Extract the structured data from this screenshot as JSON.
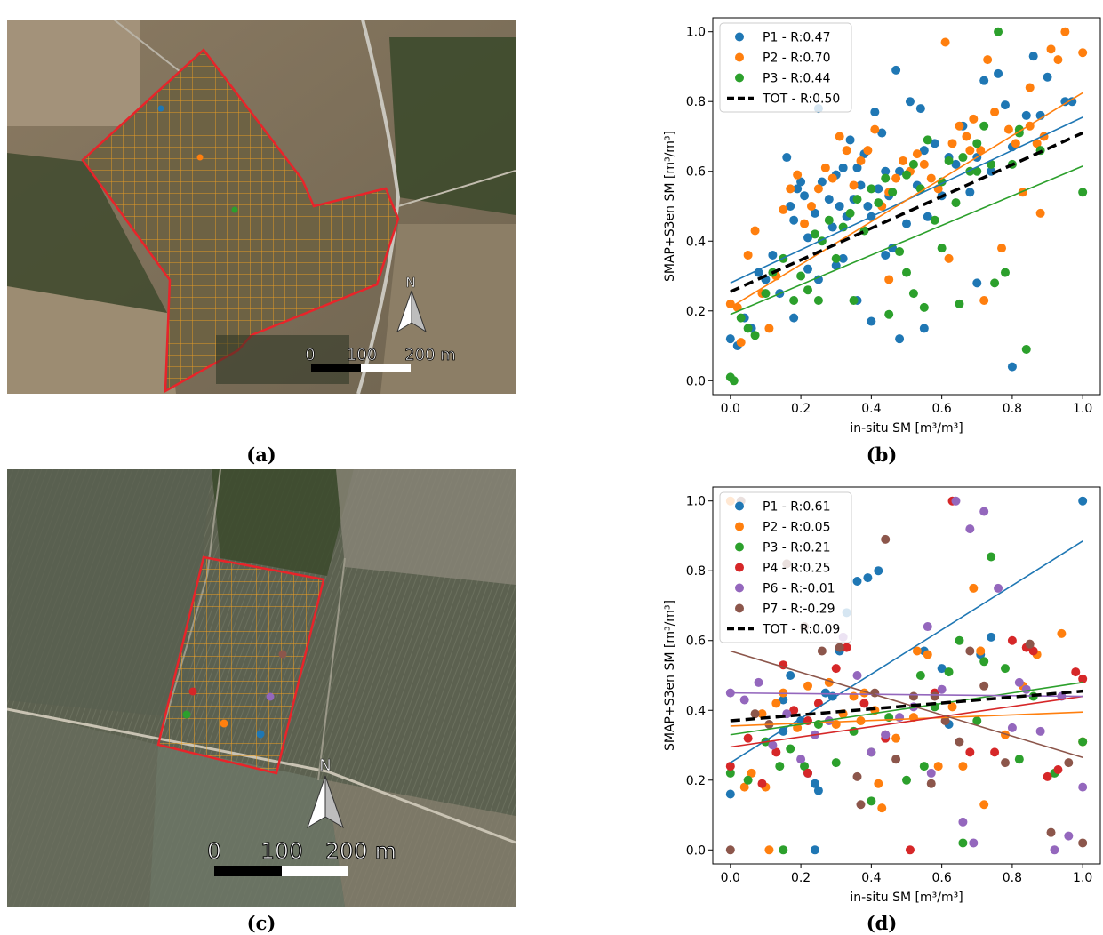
{
  "panel_labels": {
    "a": "(a)",
    "b": "(b)",
    "c": "(c)",
    "d": "(d)"
  },
  "map_a": {
    "scale_labels": [
      "0",
      "100",
      "200 m"
    ],
    "north": "N",
    "points": [
      {
        "color": "#1f77b4"
      },
      {
        "color": "#ff7f0e"
      },
      {
        "color": "#2ca02c"
      }
    ]
  },
  "map_c": {
    "scale_labels": [
      "0",
      "100",
      "200 m"
    ],
    "north": "N",
    "points": [
      {
        "color": "#d62728"
      },
      {
        "color": "#2ca02c"
      },
      {
        "color": "#ff7f0e"
      },
      {
        "color": "#1f77b4"
      },
      {
        "color": "#9467bd"
      },
      {
        "color": "#8c564b"
      }
    ]
  },
  "colors": {
    "P1": "#1f77b4",
    "P2": "#ff7f0e",
    "P3": "#2ca02c",
    "P4": "#d62728",
    "P6": "#9467bd",
    "P7": "#8c564b",
    "TOT": "#000000",
    "boundary": "#e8242a",
    "grid": "#f0a020"
  },
  "chart_data": [
    {
      "type": "scatter",
      "xlabel": "in-situ SM [m³/m³]",
      "ylabel": "SMAP+S3en SM [m³/m³]",
      "xlim": [
        -0.05,
        1.05
      ],
      "ylim": [
        -0.04,
        1.04
      ],
      "xticks": [
        "0.0",
        "0.2",
        "0.4",
        "0.6",
        "0.8",
        "1.0"
      ],
      "yticks": [
        "0.0",
        "0.2",
        "0.4",
        "0.6",
        "0.8",
        "1.0"
      ],
      "legend_position": "top-left",
      "series": [
        {
          "name": "P1 - R:0.47",
          "color": "#1f77b4",
          "fit": [
            [
              0,
              0.28
            ],
            [
              1,
              0.755
            ]
          ],
          "x": [
            0.0,
            0.02,
            0.04,
            0.06,
            0.08,
            0.1,
            0.12,
            0.14,
            0.16,
            0.17,
            0.18,
            0.19,
            0.2,
            0.21,
            0.22,
            0.24,
            0.25,
            0.26,
            0.28,
            0.29,
            0.3,
            0.31,
            0.32,
            0.33,
            0.34,
            0.35,
            0.36,
            0.37,
            0.38,
            0.39,
            0.4,
            0.41,
            0.42,
            0.43,
            0.44,
            0.45,
            0.46,
            0.47,
            0.48,
            0.5,
            0.51,
            0.53,
            0.54,
            0.55,
            0.56,
            0.58,
            0.6,
            0.62,
            0.64,
            0.66,
            0.68,
            0.7,
            0.72,
            0.74,
            0.76,
            0.78,
            0.8,
            0.84,
            0.86,
            0.88,
            0.9,
            0.95,
            0.97,
            0.3,
            0.36,
            0.25,
            0.4,
            0.22,
            0.48,
            0.55,
            0.7,
            0.8,
            0.18,
            0.32,
            0.44
          ],
          "y": [
            0.12,
            0.1,
            0.18,
            0.15,
            0.31,
            0.29,
            0.36,
            0.25,
            0.64,
            0.5,
            0.46,
            0.55,
            0.57,
            0.53,
            0.41,
            0.48,
            0.78,
            0.57,
            0.52,
            0.44,
            0.59,
            0.5,
            0.35,
            0.47,
            0.69,
            0.52,
            0.61,
            0.56,
            0.65,
            0.5,
            0.47,
            0.77,
            0.55,
            0.71,
            0.6,
            0.53,
            0.38,
            0.89,
            0.6,
            0.45,
            0.8,
            0.56,
            0.78,
            0.66,
            0.47,
            0.68,
            0.53,
            0.64,
            0.62,
            0.73,
            0.54,
            0.64,
            0.86,
            0.6,
            0.88,
            0.79,
            0.67,
            0.76,
            0.93,
            0.76,
            0.87,
            0.8,
            0.8,
            0.33,
            0.23,
            0.29,
            0.17,
            0.32,
            0.12,
            0.15,
            0.28,
            0.04,
            0.18,
            0.61,
            0.36
          ]
        },
        {
          "name": "P2 - R:0.70",
          "color": "#ff7f0e",
          "fit": [
            [
              0,
              0.21
            ],
            [
              1,
              0.825
            ]
          ],
          "x": [
            0.0,
            0.02,
            0.03,
            0.05,
            0.07,
            0.09,
            0.11,
            0.13,
            0.15,
            0.17,
            0.19,
            0.21,
            0.23,
            0.25,
            0.27,
            0.29,
            0.31,
            0.33,
            0.35,
            0.37,
            0.39,
            0.41,
            0.43,
            0.45,
            0.47,
            0.49,
            0.51,
            0.53,
            0.55,
            0.57,
            0.59,
            0.61,
            0.63,
            0.65,
            0.67,
            0.69,
            0.71,
            0.73,
            0.75,
            0.77,
            0.79,
            0.81,
            0.83,
            0.85,
            0.87,
            0.89,
            0.91,
            0.93,
            0.95,
            1.0,
            0.62,
            0.68,
            0.88,
            0.85,
            0.72,
            0.45
          ],
          "y": [
            0.22,
            0.21,
            0.11,
            0.36,
            0.43,
            0.25,
            0.15,
            0.3,
            0.49,
            0.55,
            0.59,
            0.45,
            0.5,
            0.55,
            0.61,
            0.58,
            0.7,
            0.66,
            0.56,
            0.63,
            0.66,
            0.72,
            0.5,
            0.54,
            0.58,
            0.63,
            0.6,
            0.65,
            0.62,
            0.58,
            0.55,
            0.97,
            0.68,
            0.73,
            0.7,
            0.75,
            0.66,
            0.92,
            0.77,
            0.38,
            0.72,
            0.68,
            0.54,
            0.73,
            0.68,
            0.7,
            0.95,
            0.92,
            1.0,
            0.94,
            0.35,
            0.66,
            0.48,
            0.84,
            0.23,
            0.29
          ]
        },
        {
          "name": "P3 - R:0.44",
          "color": "#2ca02c",
          "fit": [
            [
              0,
              0.19
            ],
            [
              1,
              0.615
            ]
          ],
          "x": [
            0.0,
            0.01,
            0.03,
            0.05,
            0.07,
            0.1,
            0.12,
            0.15,
            0.18,
            0.2,
            0.22,
            0.24,
            0.26,
            0.28,
            0.3,
            0.32,
            0.34,
            0.36,
            0.38,
            0.4,
            0.42,
            0.44,
            0.46,
            0.48,
            0.5,
            0.52,
            0.54,
            0.56,
            0.58,
            0.6,
            0.62,
            0.64,
            0.66,
            0.68,
            0.7,
            0.72,
            0.74,
            0.76,
            0.78,
            0.8,
            0.82,
            0.84,
            0.88,
            1.0,
            0.25,
            0.35,
            0.45,
            0.55,
            0.65,
            0.75,
            0.6,
            0.5,
            0.82,
            0.52,
            0.7
          ],
          "y": [
            0.01,
            0.0,
            0.18,
            0.15,
            0.13,
            0.25,
            0.31,
            0.35,
            0.23,
            0.3,
            0.26,
            0.42,
            0.4,
            0.46,
            0.35,
            0.44,
            0.48,
            0.52,
            0.43,
            0.55,
            0.51,
            0.58,
            0.54,
            0.37,
            0.59,
            0.62,
            0.55,
            0.69,
            0.46,
            0.57,
            0.63,
            0.51,
            0.64,
            0.6,
            0.68,
            0.73,
            0.62,
            1.0,
            0.31,
            0.62,
            0.72,
            0.09,
            0.66,
            0.54,
            0.23,
            0.23,
            0.19,
            0.21,
            0.22,
            0.28,
            0.38,
            0.31,
            0.71,
            0.25,
            0.6
          ]
        },
        {
          "name": "TOT - R:0.50",
          "color": "#000000",
          "style": "dashed",
          "fit": [
            [
              0,
              0.255
            ],
            [
              1,
              0.71
            ]
          ],
          "x": [],
          "y": []
        }
      ]
    },
    {
      "type": "scatter",
      "xlabel": "in-situ SM [m³/m³]",
      "ylabel": "SMAP+S3en SM [m³/m³]",
      "xlim": [
        -0.05,
        1.05
      ],
      "ylim": [
        -0.04,
        1.04
      ],
      "xticks": [
        "0.0",
        "0.2",
        "0.4",
        "0.6",
        "0.8",
        "1.0"
      ],
      "yticks": [
        "0.0",
        "0.2",
        "0.4",
        "0.6",
        "0.8",
        "1.0"
      ],
      "legend_position": "top-left",
      "series": [
        {
          "name": "P1 - R:0.61",
          "color": "#1f77b4",
          "fit": [
            [
              0,
              0.25
            ],
            [
              1,
              0.885
            ]
          ],
          "x": [
            0.0,
            0.15,
            0.15,
            0.17,
            0.2,
            0.22,
            0.24,
            0.25,
            0.27,
            0.29,
            0.31,
            0.33,
            0.36,
            0.39,
            0.42,
            0.55,
            0.6,
            0.62,
            0.71,
            0.74,
            1.0,
            0.24
          ],
          "y": [
            0.16,
            0.34,
            0.43,
            0.5,
            0.37,
            0.22,
            0.19,
            0.17,
            0.45,
            0.44,
            0.57,
            0.68,
            0.77,
            0.78,
            0.8,
            0.57,
            0.52,
            0.36,
            0.56,
            0.61,
            1.0,
            0.0
          ]
        },
        {
          "name": "P2 - R:0.05",
          "color": "#ff7f0e",
          "fit": [
            [
              0,
              0.355
            ],
            [
              1,
              0.395
            ]
          ],
          "x": [
            0.0,
            0.04,
            0.06,
            0.09,
            0.11,
            0.13,
            0.15,
            0.19,
            0.22,
            0.28,
            0.3,
            0.32,
            0.35,
            0.38,
            0.41,
            0.43,
            0.47,
            0.52,
            0.56,
            0.59,
            0.63,
            0.66,
            0.69,
            0.71,
            0.72,
            0.78,
            0.83,
            0.87,
            0.94,
            1.0,
            0.42,
            0.37,
            0.53,
            0.1,
            0.71
          ],
          "y": [
            1.0,
            0.18,
            0.22,
            0.39,
            0.0,
            0.42,
            0.45,
            0.35,
            0.47,
            0.48,
            0.36,
            0.39,
            0.44,
            0.45,
            0.4,
            0.12,
            0.32,
            0.38,
            0.56,
            0.24,
            0.41,
            0.24,
            0.75,
            0.57,
            0.13,
            0.33,
            0.47,
            0.56,
            0.62,
            0.31,
            0.19,
            0.37,
            0.57,
            0.18,
            0.57
          ]
        },
        {
          "name": "P3 - R:0.21",
          "color": "#2ca02c",
          "fit": [
            [
              0,
              0.33
            ],
            [
              1,
              0.48
            ]
          ],
          "x": [
            0.0,
            0.05,
            0.1,
            0.14,
            0.17,
            0.21,
            0.25,
            0.3,
            0.35,
            0.4,
            0.45,
            0.5,
            0.54,
            0.58,
            0.62,
            0.66,
            0.7,
            0.74,
            0.78,
            0.82,
            0.86,
            0.92,
            1.0,
            0.65,
            0.72,
            0.55,
            0.15,
            0.4
          ],
          "y": [
            0.22,
            0.2,
            0.31,
            0.24,
            0.29,
            0.24,
            0.36,
            0.25,
            0.34,
            0.14,
            0.38,
            0.2,
            0.5,
            0.41,
            0.51,
            0.02,
            0.37,
            0.84,
            0.52,
            0.26,
            0.44,
            0.22,
            0.31,
            0.6,
            0.54,
            0.24,
            0.0,
            0.28
          ]
        },
        {
          "name": "P4 - R:0.25",
          "color": "#d62728",
          "fit": [
            [
              0,
              0.295
            ],
            [
              1,
              0.44
            ]
          ],
          "x": [
            0.0,
            0.05,
            0.09,
            0.13,
            0.15,
            0.18,
            0.22,
            0.25,
            0.3,
            0.33,
            0.38,
            0.44,
            0.51,
            0.58,
            0.63,
            0.68,
            0.75,
            0.8,
            0.84,
            0.86,
            0.9,
            0.93,
            0.98,
            1.0,
            0.22,
            0.44
          ],
          "y": [
            0.24,
            0.32,
            0.19,
            0.28,
            0.53,
            0.4,
            0.37,
            0.42,
            0.52,
            0.58,
            0.42,
            0.32,
            0.0,
            0.45,
            1.0,
            0.28,
            0.28,
            0.6,
            0.58,
            0.57,
            0.21,
            0.23,
            0.51,
            0.49,
            0.22,
            0.33
          ]
        },
        {
          "name": "P6 - R:-0.01",
          "color": "#9467bd",
          "fit": [
            [
              0,
              0.45
            ],
            [
              1,
              0.44
            ]
          ],
          "x": [
            0.0,
            0.04,
            0.08,
            0.12,
            0.16,
            0.2,
            0.24,
            0.28,
            0.32,
            0.36,
            0.4,
            0.44,
            0.48,
            0.52,
            0.56,
            0.6,
            0.64,
            0.68,
            0.72,
            0.76,
            0.8,
            0.84,
            0.88,
            0.92,
            0.96,
            1.0,
            0.57,
            0.69,
            0.66,
            0.94,
            0.82
          ],
          "y": [
            0.45,
            0.43,
            0.48,
            0.3,
            0.39,
            0.26,
            0.33,
            0.37,
            0.61,
            0.5,
            0.28,
            0.33,
            0.38,
            0.41,
            0.64,
            0.46,
            1.0,
            0.92,
            0.97,
            0.75,
            0.35,
            0.46,
            0.34,
            0.0,
            0.04,
            0.18,
            0.22,
            0.02,
            0.08,
            0.44,
            0.48
          ]
        },
        {
          "name": "P7 - R:-0.29",
          "color": "#8c564b",
          "fit": [
            [
              0,
              0.57
            ],
            [
              1,
              0.265
            ]
          ],
          "x": [
            0.0,
            0.03,
            0.07,
            0.11,
            0.16,
            0.21,
            0.26,
            0.31,
            0.36,
            0.41,
            0.44,
            0.47,
            0.52,
            0.57,
            0.61,
            0.65,
            0.68,
            0.72,
            0.78,
            0.85,
            0.91,
            0.96,
            1.0,
            0.37,
            0.58
          ],
          "y": [
            0.0,
            1.0,
            0.39,
            0.36,
            0.82,
            0.64,
            0.57,
            0.58,
            0.21,
            0.45,
            0.89,
            0.26,
            0.44,
            0.19,
            0.37,
            0.31,
            0.57,
            0.47,
            0.25,
            0.59,
            0.05,
            0.25,
            0.02,
            0.13,
            0.44
          ]
        },
        {
          "name": "TOT - R:0.09",
          "color": "#000000",
          "style": "dashed",
          "fit": [
            [
              0,
              0.37
            ],
            [
              1,
              0.455
            ]
          ],
          "x": [],
          "y": []
        }
      ]
    }
  ]
}
